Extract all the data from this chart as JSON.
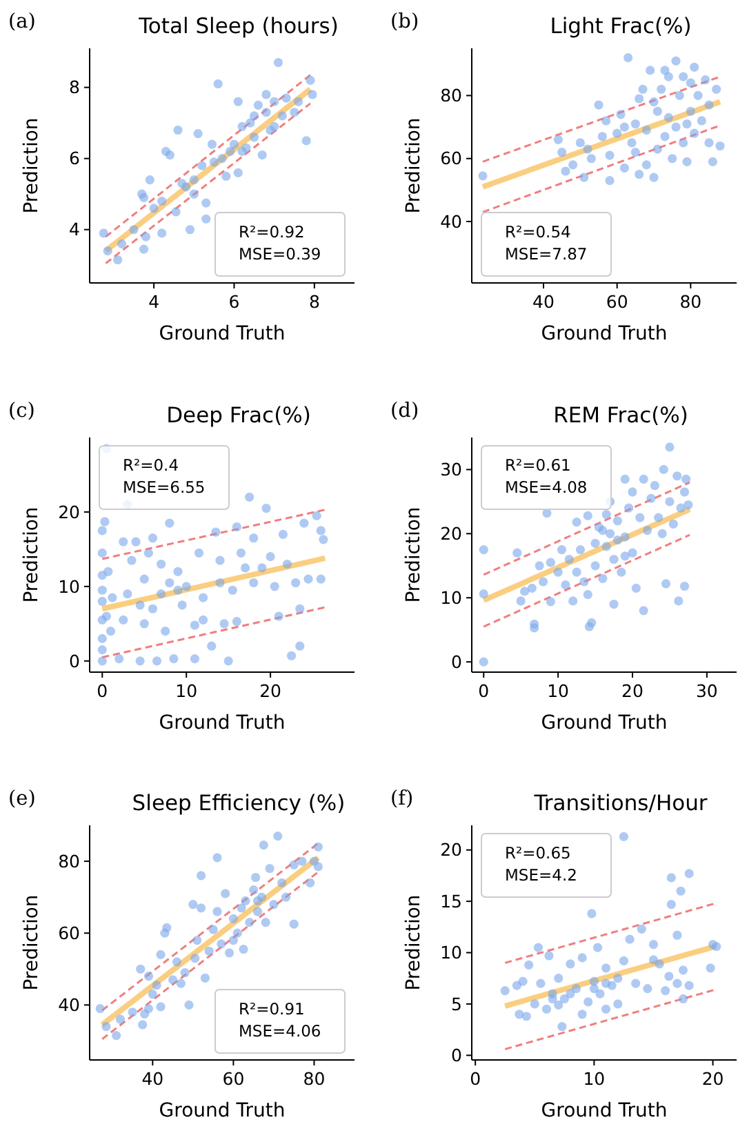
{
  "chart_data": [
    {
      "type": "scatter",
      "title": "Total Sleep (hours)",
      "xlabel": "Ground Truth",
      "ylabel": "Prediction",
      "xlim": [
        2.4,
        9
      ],
      "ylim": [
        2.5,
        9.1
      ],
      "xticks": [
        4,
        6,
        8
      ],
      "yticks": [
        4,
        6,
        8
      ],
      "grid": false,
      "annotations": [
        "(a)",
        "R²=0.92",
        "MSE=0.39"
      ],
      "series": [
        {
          "marker": "circle",
          "color": "#7aa6ea",
          "x": [
            2.75,
            2.85,
            3.1,
            3.2,
            3.5,
            3.7,
            3.75,
            3.8,
            3.75,
            3.9,
            4.0,
            4.2,
            4.3,
            4.4,
            4.6,
            4.55,
            4.8,
            4.9,
            5.0,
            5.1,
            5.2,
            5.3,
            5.3,
            5.45,
            5.5,
            5.6,
            5.8,
            5.9,
            6.0,
            6.1,
            6.1,
            6.2,
            6.3,
            6.4,
            6.5,
            6.6,
            6.7,
            6.8,
            6.8,
            6.9,
            7.0,
            7.1,
            7.2,
            7.3,
            7.5,
            7.6,
            7.8,
            7.9,
            7.95,
            6.2,
            5.7,
            6.5,
            7.0,
            4.2,
            5.0,
            4.7
          ],
          "values": [
            3.9,
            3.4,
            3.15,
            3.6,
            4.0,
            5.0,
            4.9,
            3.8,
            3.45,
            5.4,
            4.6,
            3.9,
            6.2,
            6.1,
            6.8,
            4.5,
            5.2,
            4.0,
            5.4,
            6.7,
            5.8,
            4.75,
            4.3,
            6.4,
            5.9,
            8.1,
            5.5,
            6.2,
            6.4,
            5.6,
            7.6,
            6.9,
            6.3,
            7.0,
            6.6,
            7.5,
            6.1,
            7.3,
            7.8,
            6.8,
            7.6,
            8.7,
            7.2,
            7.7,
            7.3,
            7.6,
            6.5,
            8.2,
            7.8,
            6.2,
            6.0,
            7.2,
            6.9,
            4.8,
            5.0,
            5.3
          ]
        },
        {
          "type": "line",
          "color": "#f9c66b",
          "x": [
            2.8,
            7.9
          ],
          "values": [
            3.4,
            7.95
          ]
        },
        {
          "type": "line",
          "color": "#f07070",
          "line_style": "dashed",
          "x": [
            2.8,
            7.9
          ],
          "values": [
            3.8,
            8.35
          ]
        },
        {
          "type": "line",
          "color": "#f07070",
          "line_style": "dashed",
          "x": [
            2.8,
            7.9
          ],
          "values": [
            3.05,
            7.55
          ]
        }
      ]
    },
    {
      "type": "scatter",
      "title": "Light Frac(%)",
      "xlabel": "Ground Truth",
      "ylabel": "Prediction",
      "xlim": [
        20.5,
        92.5
      ],
      "ylim": [
        20.5,
        95
      ],
      "xticks": [
        40,
        60,
        80
      ],
      "yticks": [
        40,
        60,
        80
      ],
      "grid": false,
      "annotations": [
        "(b)",
        "R²=0.54",
        "MSE=7.87"
      ],
      "series": [
        {
          "marker": "circle",
          "color": "#7aa6ea",
          "x": [
            23.5,
            44,
            45,
            46,
            48,
            50,
            51,
            52,
            53,
            55,
            56,
            57,
            58,
            58,
            60,
            61,
            62,
            63,
            64,
            65,
            66,
            66,
            67,
            68,
            68,
            69,
            70,
            71,
            71,
            72,
            73,
            74,
            75,
            76,
            76,
            77,
            78,
            78,
            79,
            80,
            80,
            81,
            81,
            82,
            83,
            84,
            85,
            85,
            86,
            87,
            88,
            74,
            73,
            70,
            79,
            62,
            65
          ],
          "values": [
            54.5,
            66,
            62,
            56,
            58,
            65,
            54,
            63,
            60,
            77,
            67,
            72,
            53,
            61,
            68,
            74,
            57,
            92,
            65,
            71,
            55,
            79,
            82,
            58,
            69,
            88,
            54,
            75,
            63,
            82,
            67,
            73,
            60,
            91,
            70,
            80,
            65,
            86,
            59,
            84,
            75,
            89,
            68,
            80,
            72,
            85,
            77,
            65,
            59,
            82,
            64,
            86,
            88,
            78,
            71,
            70,
            62
          ]
        },
        {
          "type": "line",
          "color": "#f9c66b",
          "x": [
            23.5,
            88
          ],
          "values": [
            51,
            78
          ]
        },
        {
          "type": "line",
          "color": "#f07070",
          "line_style": "dashed",
          "x": [
            23.5,
            88
          ],
          "values": [
            59,
            86
          ]
        },
        {
          "type": "line",
          "color": "#f07070",
          "line_style": "dashed",
          "x": [
            23.5,
            88
          ],
          "values": [
            43,
            70.5
          ]
        }
      ]
    },
    {
      "type": "scatter",
      "title": "Deep Frac(%)",
      "xlabel": "Ground Truth",
      "ylabel": "Prediction",
      "xlim": [
        -1.5,
        30
      ],
      "ylim": [
        -1.5,
        30
      ],
      "xticks": [
        0,
        10,
        20
      ],
      "yticks": [
        0,
        10,
        20
      ],
      "grid": false,
      "annotations": [
        "(c)",
        "R²=0.4",
        "MSE=6.55"
      ],
      "series": [
        {
          "marker": "circle",
          "color": "#7aa6ea",
          "x": [
            0,
            0,
            0,
            0,
            0,
            0,
            0,
            0,
            0,
            0.3,
            0.5,
            0.5,
            0.7,
            1,
            1.2,
            2,
            2.5,
            2.5,
            3,
            3,
            3.5,
            4,
            4.5,
            4.5,
            5,
            5,
            5.5,
            6,
            6,
            6.5,
            7,
            7.5,
            8,
            8,
            8.5,
            9,
            9.5,
            10,
            11,
            11,
            11.5,
            12,
            12,
            13,
            13.5,
            14,
            14,
            14.5,
            15,
            15.5,
            16,
            16.5,
            17,
            17.5,
            18,
            18,
            19,
            19.5,
            20,
            20.5,
            21,
            21.5,
            22,
            22.5,
            23,
            23.5,
            23.5,
            24,
            24.5,
            25.5,
            26,
            26,
            26.3,
            16,
            9,
            7
          ],
          "values": [
            0,
            1.5,
            3,
            5.5,
            8,
            9.5,
            11.5,
            14.5,
            17.5,
            18.7,
            28.5,
            6,
            12,
            4,
            8.5,
            0.3,
            16,
            5.5,
            21,
            9,
            13.5,
            16,
            0,
            7.5,
            5,
            11,
            14.5,
            16.5,
            7,
            0,
            13,
            4,
            18.5,
            10.5,
            0.3,
            12,
            7.5,
            10,
            0.3,
            4.8,
            14.5,
            8.5,
            5.5,
            2,
            17.3,
            13.5,
            10.5,
            5,
            0,
            9.5,
            5.3,
            14.5,
            12.5,
            22,
            16.5,
            10.5,
            12.5,
            20.5,
            14,
            10,
            6,
            17,
            13,
            0.7,
            10.5,
            7,
            2,
            18.5,
            11,
            19.5,
            17.5,
            11,
            16.3,
            18,
            9.5,
            9
          ]
        },
        {
          "type": "line",
          "color": "#f9c66b",
          "x": [
            0,
            26.5
          ],
          "values": [
            7,
            13.8
          ]
        },
        {
          "type": "line",
          "color": "#f07070",
          "line_style": "dashed",
          "x": [
            0,
            26.5
          ],
          "values": [
            13.7,
            20.3
          ]
        },
        {
          "type": "line",
          "color": "#f07070",
          "line_style": "dashed",
          "x": [
            0,
            26.5
          ],
          "values": [
            0.5,
            7.2
          ]
        }
      ]
    },
    {
      "type": "scatter",
      "title": "REM Frac(%)",
      "xlabel": "Ground Truth",
      "ylabel": "Prediction",
      "xlim": [
        -1.6,
        34
      ],
      "ylim": [
        -1.6,
        35
      ],
      "xticks": [
        0,
        10,
        20,
        30
      ],
      "yticks": [
        0,
        10,
        20,
        30
      ],
      "grid": false,
      "annotations": [
        "(d)",
        "R²=0.61",
        "MSE=4.08"
      ],
      "series": [
        {
          "marker": "circle",
          "color": "#7aa6ea",
          "x": [
            0,
            0,
            0,
            4.5,
            5,
            5.5,
            6.5,
            6.8,
            6.8,
            7.5,
            8,
            8.5,
            9,
            9,
            10,
            10.5,
            11,
            11.5,
            12,
            12.5,
            12.5,
            13,
            13.5,
            14,
            14,
            14.2,
            14.5,
            15,
            15,
            15.5,
            16,
            16.5,
            16.5,
            17,
            17,
            17.5,
            17.5,
            18,
            18.5,
            19,
            19,
            19.5,
            20,
            20,
            20.5,
            21,
            21.5,
            21.5,
            22,
            22.5,
            23,
            23.5,
            24,
            24.2,
            24.5,
            25,
            25,
            25.5,
            26,
            26.2,
            26.5,
            27,
            27,
            27.5,
            27.2,
            16,
            18,
            19
          ],
          "values": [
            17.5,
            10.6,
            0,
            17,
            9.5,
            11,
            11.5,
            5.9,
            5.3,
            15,
            12.5,
            23.2,
            9.4,
            15.5,
            14,
            17.5,
            12,
            16,
            9.5,
            14,
            21.8,
            17.5,
            12.5,
            10.5,
            22.8,
            5.5,
            6.1,
            15,
            18.5,
            21,
            13,
            23,
            18,
            25,
            20,
            9,
            16,
            22,
            14,
            28.5,
            19.5,
            24,
            17,
            26.5,
            11.5,
            22.5,
            28.5,
            8,
            20.5,
            25.5,
            27.5,
            22.5,
            20,
            30,
            12.2,
            33.5,
            25,
            21.5,
            29,
            9.5,
            24,
            26.5,
            11.8,
            24.5,
            28.5,
            20.5,
            19,
            16.5
          ]
        },
        {
          "type": "line",
          "color": "#f9c66b",
          "x": [
            0,
            27.7
          ],
          "values": [
            9.6,
            23.8
          ]
        },
        {
          "type": "line",
          "color": "#f07070",
          "line_style": "dashed",
          "x": [
            0,
            27.7
          ],
          "values": [
            13.6,
            28
          ]
        },
        {
          "type": "line",
          "color": "#f07070",
          "line_style": "dashed",
          "x": [
            0,
            27.7
          ],
          "values": [
            5.5,
            19.8
          ]
        }
      ]
    },
    {
      "type": "scatter",
      "title": "Sleep Efficiency (%)",
      "xlabel": "Ground Truth",
      "ylabel": "Prediction",
      "xlim": [
        24.4,
        90
      ],
      "ylim": [
        24.7,
        90
      ],
      "xticks": [
        40,
        60,
        80
      ],
      "yticks": [
        40,
        60,
        80
      ],
      "grid": false,
      "annotations": [
        "(e)",
        "R²=0.91",
        "MSE=4.06"
      ],
      "series": [
        {
          "marker": "circle",
          "color": "#7aa6ea",
          "x": [
            27,
            28.5,
            31,
            32,
            35,
            37,
            37.5,
            38,
            39,
            39,
            40,
            41,
            42,
            42,
            43,
            43.5,
            45,
            46,
            47,
            48,
            49,
            50,
            50.5,
            51,
            52,
            52,
            53,
            54,
            55,
            56,
            56,
            57,
            58,
            59,
            60,
            61,
            62,
            62.5,
            63,
            64,
            65,
            65.5,
            66,
            67,
            67.5,
            68,
            69,
            70,
            71,
            72,
            73,
            75,
            75,
            77,
            79,
            80,
            81,
            81,
            60,
            66
          ],
          "values": [
            39,
            34,
            31.5,
            36,
            38,
            50,
            34.5,
            37.5,
            39,
            48,
            43,
            45.5,
            39.5,
            54,
            60,
            61.5,
            47,
            52,
            46,
            49,
            40,
            68,
            53,
            58,
            76,
            67,
            47.5,
            55,
            61,
            81,
            66,
            57,
            71,
            54.5,
            64,
            60,
            67,
            55.5,
            69,
            63,
            72,
            75.5,
            66,
            70,
            84.5,
            63,
            78,
            68,
            87,
            74,
            70,
            62.5,
            79,
            80,
            74,
            80,
            84,
            78.5,
            58,
            69
          ]
        },
        {
          "type": "line",
          "color": "#f9c66b",
          "x": [
            27.5,
            81
          ],
          "values": [
            34.5,
            81
          ]
        },
        {
          "type": "line",
          "color": "#f07070",
          "line_style": "dashed",
          "x": [
            27.5,
            81
          ],
          "values": [
            38.5,
            85
          ]
        },
        {
          "type": "line",
          "color": "#f07070",
          "line_style": "dashed",
          "x": [
            27.5,
            81
          ],
          "values": [
            30.5,
            77
          ]
        }
      ]
    },
    {
      "type": "scatter",
      "title": "Transitions/Hour",
      "xlabel": "Ground Truth",
      "ylabel": "Prediction",
      "xlim": [
        -0.3,
        22
      ],
      "ylim": [
        -0.45,
        22.4
      ],
      "xticks": [
        0,
        10,
        20
      ],
      "yticks": [
        0,
        5,
        10,
        15,
        20
      ],
      "grid": false,
      "annotations": [
        "(f)",
        "R²=0.65",
        "MSE=4.2"
      ],
      "series": [
        {
          "marker": "circle",
          "color": "#7aa6ea",
          "x": [
            2.5,
            3.5,
            3.7,
            4,
            4.3,
            4.5,
            5,
            5.3,
            5.5,
            6,
            6.2,
            6.5,
            7,
            7,
            7.3,
            7.5,
            8,
            8.5,
            9,
            9,
            9.5,
            9.8,
            10,
            10.3,
            10.5,
            11,
            11,
            11.5,
            12,
            12,
            12.5,
            12.5,
            13,
            13.5,
            14,
            14.5,
            15,
            15,
            15.5,
            16,
            16.3,
            16.5,
            16.5,
            17,
            17,
            17.3,
            17.5,
            17.5,
            18,
            18,
            19.8,
            20,
            20.3,
            8,
            10,
            11,
            6.5
          ],
          "values": [
            6.3,
            6.8,
            4,
            7.2,
            3.8,
            8.8,
            5,
            10.5,
            7,
            4.5,
            9.7,
            6,
            4.9,
            7.5,
            2.8,
            5.5,
            8.9,
            6.5,
            4,
            9.5,
            5.2,
            13.8,
            7.2,
            10.5,
            6,
            8.5,
            4.5,
            6.8,
            7.5,
            5,
            21.3,
            9.2,
            11.3,
            7,
            12.3,
            6.5,
            10.8,
            9.3,
            8.9,
            6.3,
            7.7,
            17.3,
            14.7,
            7,
            11.7,
            16,
            5.5,
            8.3,
            17.7,
            6.8,
            8.5,
            10.8,
            10.6,
            6,
            6.5,
            7,
            5.5
          ]
        },
        {
          "type": "line",
          "color": "#f9c66b",
          "x": [
            2.5,
            20.2
          ],
          "values": [
            4.8,
            10.6
          ]
        },
        {
          "type": "line",
          "color": "#f07070",
          "line_style": "dashed",
          "x": [
            2.5,
            20.2
          ],
          "values": [
            9,
            14.8
          ]
        },
        {
          "type": "line",
          "color": "#f07070",
          "line_style": "dashed",
          "x": [
            2.5,
            20.2
          ],
          "values": [
            0.6,
            6.4
          ]
        }
      ]
    }
  ]
}
